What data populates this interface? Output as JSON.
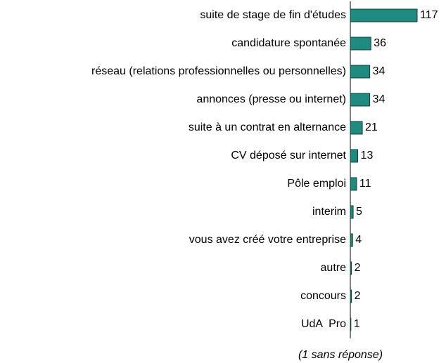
{
  "chart_data": {
    "type": "barh",
    "categories": [
      "suite de stage de fin d'études",
      "candidature spontanée",
      "réseau (relations professionnelles ou personnelles)",
      "annonces (presse ou internet)",
      "suite à un contrat en alternance",
      "CV déposé sur internet",
      "Pôle emploi",
      "interim",
      "vous avez créé votre entreprise",
      "autre",
      "concours",
      "UdA  Pro"
    ],
    "values": [
      117,
      36,
      34,
      34,
      21,
      13,
      11,
      5,
      4,
      2,
      2,
      1
    ],
    "color": "#1f8a80",
    "annotation": "(1 sans réponse)"
  }
}
